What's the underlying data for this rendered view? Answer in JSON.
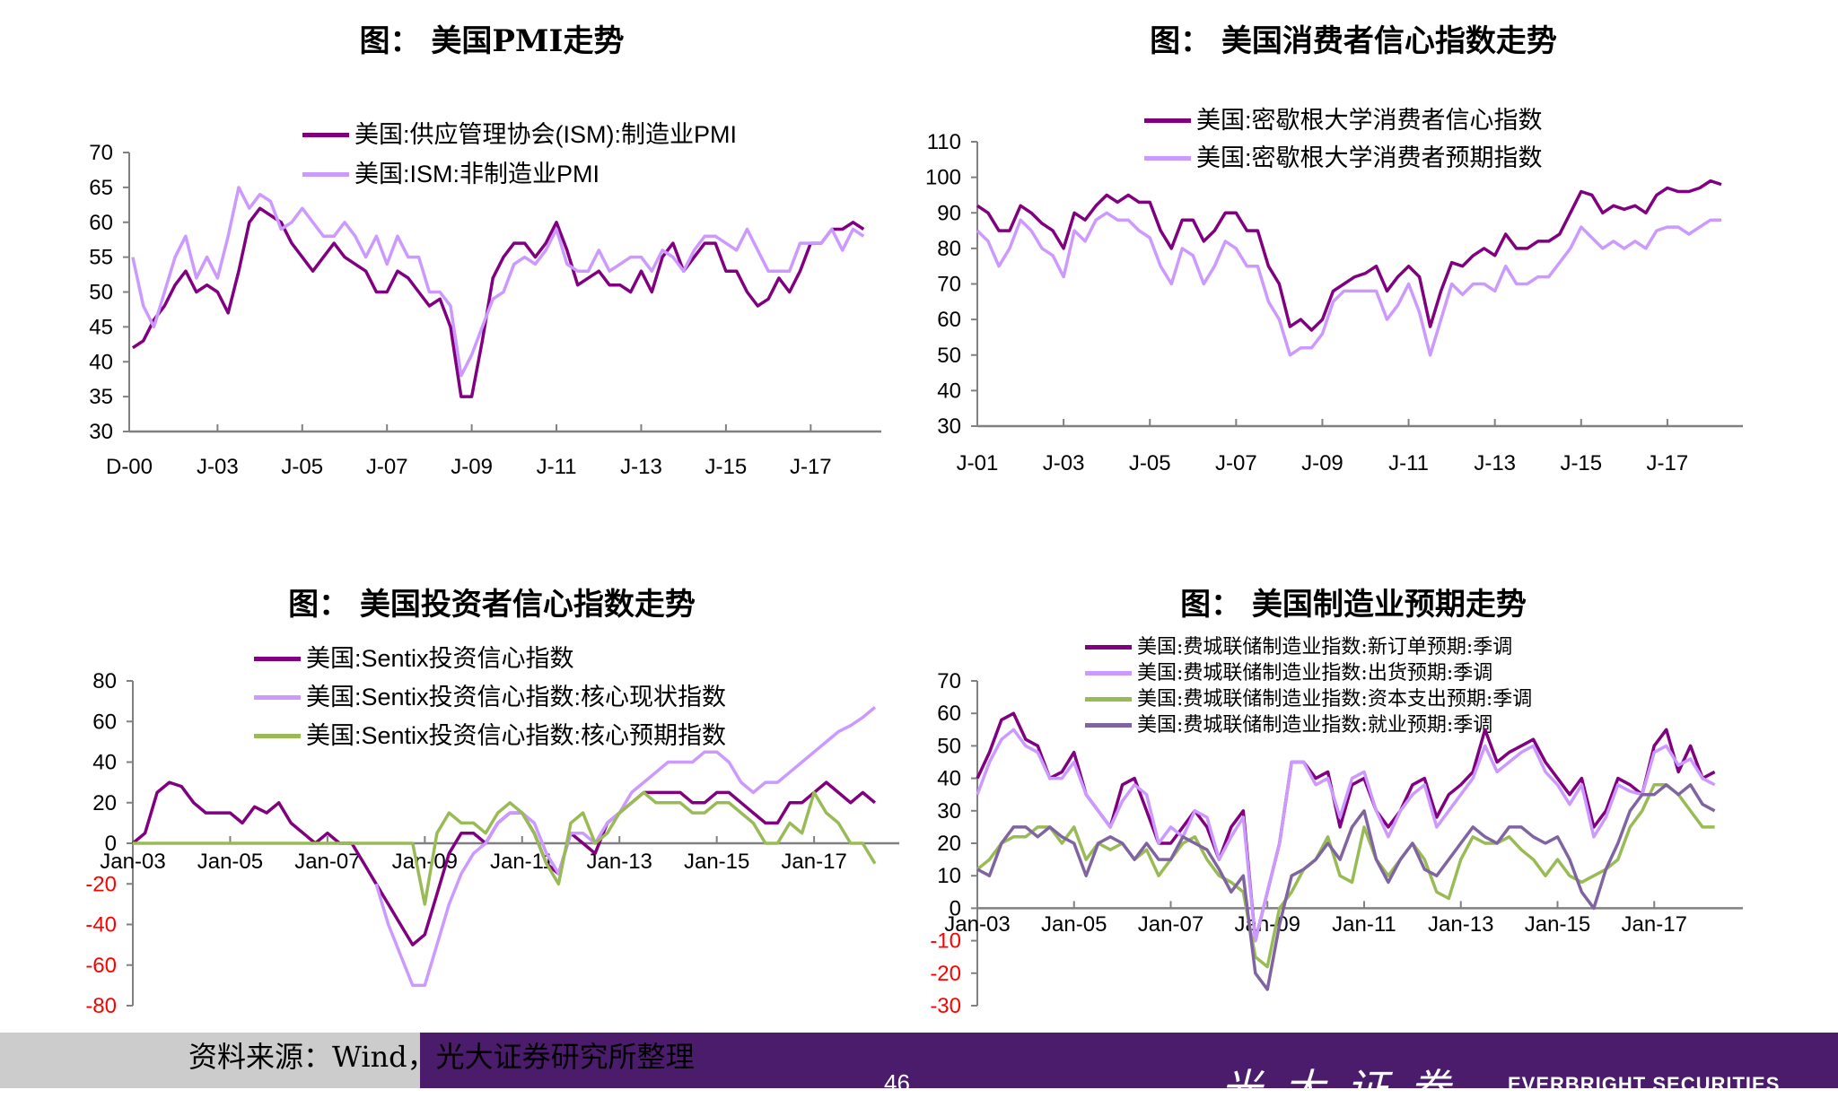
{
  "chart_data": [
    {
      "type": "line",
      "title": "图： 美国PMI走势",
      "frequency": "quarterly",
      "start": "2001-01",
      "xlim": [
        "2000-12",
        "2018-09"
      ],
      "ylim": [
        30,
        70
      ],
      "yticks": [
        30,
        35,
        40,
        45,
        50,
        55,
        60,
        65,
        70
      ],
      "xticks": [
        {
          "label": "D-00",
          "date": "2000-12"
        },
        {
          "label": "J-03",
          "date": "2003-01"
        },
        {
          "label": "J-05",
          "date": "2005-01"
        },
        {
          "label": "J-07",
          "date": "2007-01"
        },
        {
          "label": "J-09",
          "date": "2009-01"
        },
        {
          "label": "J-11",
          "date": "2011-01"
        },
        {
          "label": "J-13",
          "date": "2013-01"
        },
        {
          "label": "J-15",
          "date": "2015-01"
        },
        {
          "label": "J-17",
          "date": "2017-01"
        }
      ],
      "legend_position": "top",
      "series": [
        {
          "name": "美国:供应管理协会(ISM):制造业PMI",
          "color": "#800080",
          "values": [
            42,
            43,
            46,
            48,
            51,
            53,
            50,
            51,
            50,
            47,
            53,
            60,
            62,
            61,
            60,
            57,
            55,
            53,
            55,
            57,
            55,
            54,
            53,
            50,
            50,
            53,
            52,
            50,
            48,
            49,
            45,
            35,
            35,
            43,
            52,
            55,
            57,
            57,
            55,
            57,
            60,
            56,
            51,
            52,
            53,
            51,
            51,
            50,
            53,
            50,
            55,
            57,
            53,
            55,
            57,
            57,
            53,
            53,
            50,
            48,
            49,
            52,
            50,
            53,
            57,
            57,
            59,
            59,
            60,
            59
          ]
        },
        {
          "name": "美国:ISM:非制造业PMI",
          "color": "#cc99ff",
          "values": [
            55,
            48,
            45,
            50,
            55,
            58,
            52,
            55,
            52,
            58,
            65,
            62,
            64,
            63,
            59,
            60,
            62,
            60,
            58,
            58,
            60,
            58,
            55,
            58,
            54,
            58,
            55,
            55,
            50,
            50,
            48,
            38,
            41,
            45,
            49,
            50,
            54,
            55,
            54,
            56,
            59,
            54,
            53,
            53,
            56,
            53,
            54,
            55,
            55,
            53,
            56,
            55,
            53,
            56,
            58,
            58,
            57,
            56,
            59,
            56,
            53,
            53,
            53,
            57,
            57,
            57,
            59,
            56,
            59,
            58
          ]
        }
      ]
    },
    {
      "type": "line",
      "title": "图： 美国消费者信心指数走势",
      "frequency": "quarterly",
      "start": "2001-01",
      "xlim": [
        "2001-01",
        "2018-10"
      ],
      "ylim": [
        30,
        110
      ],
      "yticks": [
        30,
        40,
        50,
        60,
        70,
        80,
        90,
        100,
        110
      ],
      "xticks": [
        {
          "label": "J-01",
          "date": "2001-01"
        },
        {
          "label": "J-03",
          "date": "2003-01"
        },
        {
          "label": "J-05",
          "date": "2005-01"
        },
        {
          "label": "J-07",
          "date": "2007-01"
        },
        {
          "label": "J-09",
          "date": "2009-01"
        },
        {
          "label": "J-11",
          "date": "2011-01"
        },
        {
          "label": "J-13",
          "date": "2013-01"
        },
        {
          "label": "J-15",
          "date": "2015-01"
        },
        {
          "label": "J-17",
          "date": "2017-01"
        }
      ],
      "legend_position": "top",
      "series": [
        {
          "name": "美国:密歇根大学消费者信心指数",
          "color": "#800080",
          "values": [
            92,
            90,
            85,
            85,
            92,
            90,
            87,
            85,
            80,
            90,
            88,
            92,
            95,
            93,
            95,
            93,
            93,
            85,
            80,
            88,
            88,
            82,
            85,
            90,
            90,
            85,
            85,
            75,
            70,
            58,
            60,
            57,
            60,
            68,
            70,
            72,
            73,
            75,
            68,
            72,
            75,
            72,
            58,
            68,
            76,
            75,
            78,
            80,
            78,
            84,
            80,
            80,
            82,
            82,
            84,
            90,
            96,
            95,
            90,
            92,
            91,
            92,
            90,
            95,
            97,
            96,
            96,
            97,
            99,
            98
          ]
        },
        {
          "name": "美国:密歇根大学消费者预期指数",
          "color": "#cc99ff",
          "values": [
            85,
            82,
            75,
            80,
            88,
            85,
            80,
            78,
            72,
            85,
            82,
            88,
            90,
            88,
            88,
            85,
            83,
            75,
            70,
            80,
            78,
            70,
            75,
            82,
            80,
            75,
            75,
            65,
            60,
            50,
            52,
            52,
            56,
            65,
            68,
            68,
            68,
            68,
            60,
            64,
            70,
            62,
            50,
            60,
            70,
            67,
            70,
            70,
            68,
            75,
            70,
            70,
            72,
            72,
            76,
            80,
            86,
            83,
            80,
            82,
            80,
            82,
            80,
            85,
            86,
            86,
            84,
            86,
            88,
            88
          ]
        }
      ]
    },
    {
      "type": "line",
      "title": "图： 美国投资者信心指数走势",
      "frequency": "quarterly",
      "start": "2003-01",
      "xlim": [
        "2003-01",
        "2018-10"
      ],
      "ylim": [
        -80,
        80
      ],
      "yticks": [
        -80,
        -60,
        -40,
        -20,
        0,
        20,
        40,
        60,
        80
      ],
      "xticks": [
        {
          "label": "Jan-03",
          "date": "2003-01"
        },
        {
          "label": "Jan-05",
          "date": "2005-01"
        },
        {
          "label": "Jan-07",
          "date": "2007-01"
        },
        {
          "label": "Jan-09",
          "date": "2009-01"
        },
        {
          "label": "Jan-11",
          "date": "2011-01"
        },
        {
          "label": "Jan-13",
          "date": "2013-01"
        },
        {
          "label": "Jan-15",
          "date": "2015-01"
        },
        {
          "label": "Jan-17",
          "date": "2017-01"
        }
      ],
      "legend_position": "top-left",
      "series": [
        {
          "name": "美国:Sentix投资信心指数",
          "color": "#800080",
          "values": [
            0,
            5,
            25,
            30,
            28,
            20,
            15,
            15,
            15,
            10,
            18,
            15,
            20,
            10,
            5,
            0,
            5,
            0,
            0,
            -10,
            -20,
            -30,
            -40,
            -50,
            -45,
            -25,
            -5,
            5,
            5,
            0,
            10,
            15,
            15,
            5,
            -10,
            -15,
            5,
            0,
            -5,
            10,
            15,
            20,
            25,
            25,
            25,
            25,
            20,
            20,
            25,
            25,
            20,
            15,
            10,
            10,
            20,
            20,
            25,
            30,
            25,
            20,
            25,
            20
          ]
        },
        {
          "name": "美国:Sentix投资信心指数:核心现状指数",
          "color": "#cc99ff",
          "values": [
            null,
            null,
            null,
            null,
            null,
            null,
            null,
            null,
            null,
            null,
            null,
            null,
            null,
            null,
            null,
            null,
            null,
            null,
            null,
            null,
            -20,
            -40,
            -55,
            -70,
            -70,
            -50,
            -30,
            -15,
            -5,
            0,
            10,
            15,
            15,
            10,
            -5,
            -15,
            5,
            5,
            0,
            10,
            15,
            25,
            30,
            35,
            40,
            40,
            40,
            45,
            45,
            40,
            30,
            25,
            30,
            30,
            35,
            40,
            45,
            50,
            55,
            58,
            62,
            67
          ]
        },
        {
          "name": "美国:Sentix投资信心指数:核心预期指数",
          "color": "#99bb55",
          "values": [
            0,
            0,
            0,
            0,
            0,
            0,
            0,
            0,
            0,
            0,
            0,
            0,
            0,
            0,
            0,
            0,
            0,
            0,
            0,
            0,
            0,
            0,
            0,
            0,
            -30,
            5,
            15,
            10,
            10,
            5,
            15,
            20,
            15,
            5,
            -10,
            -20,
            10,
            15,
            0,
            5,
            15,
            20,
            25,
            20,
            20,
            20,
            15,
            15,
            20,
            20,
            15,
            10,
            0,
            0,
            10,
            5,
            25,
            15,
            10,
            0,
            0,
            -10
          ]
        }
      ]
    },
    {
      "type": "line",
      "title": "图： 美国制造业预期走势",
      "frequency": "quarterly",
      "start": "2003-01",
      "xlim": [
        "2003-01",
        "2018-11"
      ],
      "ylim": [
        -30,
        70
      ],
      "yticks": [
        -30,
        -20,
        -10,
        0,
        10,
        20,
        30,
        40,
        50,
        60,
        70
      ],
      "xticks": [
        {
          "label": "Jan-03",
          "date": "2003-01"
        },
        {
          "label": "Jan-05",
          "date": "2005-01"
        },
        {
          "label": "Jan-07",
          "date": "2007-01"
        },
        {
          "label": "Jan-09",
          "date": "2009-01"
        },
        {
          "label": "Jan-11",
          "date": "2011-01"
        },
        {
          "label": "Jan-13",
          "date": "2013-01"
        },
        {
          "label": "Jan-15",
          "date": "2015-01"
        },
        {
          "label": "Jan-17",
          "date": "2017-01"
        }
      ],
      "legend_position": "top",
      "series": [
        {
          "name": "美国:费城联储制造业指数:新订单预期:季调",
          "color": "#800080",
          "values": [
            40,
            48,
            58,
            60,
            52,
            50,
            40,
            42,
            48,
            35,
            30,
            25,
            38,
            40,
            30,
            20,
            20,
            25,
            30,
            25,
            15,
            25,
            30,
            -10,
            5,
            20,
            45,
            45,
            40,
            42,
            25,
            38,
            40,
            30,
            25,
            30,
            38,
            40,
            28,
            35,
            38,
            42,
            55,
            45,
            48,
            50,
            52,
            45,
            40,
            35,
            40,
            25,
            30,
            40,
            38,
            35,
            50,
            55,
            42,
            50,
            40,
            42
          ]
        },
        {
          "name": "美国:费城联储制造业指数:出货预期:季调",
          "color": "#cc99ff",
          "values": [
            35,
            45,
            52,
            55,
            50,
            48,
            40,
            40,
            45,
            35,
            30,
            25,
            33,
            38,
            35,
            20,
            25,
            22,
            30,
            28,
            15,
            22,
            28,
            -10,
            5,
            20,
            45,
            45,
            38,
            40,
            28,
            40,
            42,
            30,
            22,
            30,
            35,
            38,
            25,
            30,
            35,
            40,
            50,
            42,
            45,
            48,
            50,
            42,
            38,
            32,
            38,
            22,
            28,
            38,
            36,
            35,
            48,
            50,
            44,
            46,
            40,
            38
          ]
        },
        {
          "name": "美国:费城联储制造业指数:资本支出预期:季调",
          "color": "#99bb55",
          "values": [
            12,
            15,
            20,
            22,
            22,
            25,
            25,
            20,
            25,
            15,
            20,
            18,
            20,
            15,
            18,
            10,
            15,
            20,
            22,
            15,
            10,
            8,
            5,
            -15,
            -18,
            0,
            5,
            12,
            15,
            22,
            10,
            8,
            25,
            15,
            10,
            15,
            20,
            15,
            5,
            3,
            15,
            22,
            20,
            20,
            22,
            18,
            15,
            10,
            15,
            10,
            8,
            10,
            12,
            15,
            25,
            30,
            38,
            38,
            35,
            30,
            25,
            25
          ]
        },
        {
          "name": "美国:费城联储制造业指数:就业预期:季调",
          "color": "#8064a2",
          "values": [
            12,
            10,
            20,
            25,
            25,
            22,
            25,
            22,
            20,
            10,
            20,
            22,
            20,
            15,
            20,
            15,
            15,
            22,
            20,
            18,
            12,
            5,
            10,
            -20,
            -25,
            -5,
            10,
            12,
            15,
            20,
            15,
            25,
            30,
            15,
            8,
            15,
            20,
            12,
            10,
            15,
            20,
            25,
            22,
            20,
            25,
            25,
            22,
            20,
            22,
            15,
            5,
            0,
            12,
            20,
            30,
            35,
            35,
            38,
            35,
            38,
            32,
            30
          ]
        }
      ]
    }
  ],
  "footer": {
    "source": "资料来源：Wind，光大证券研究所整理",
    "page_number": "46",
    "logo_cn": "光大证券",
    "logo_en": "EVERBRIGHT SECURITIES"
  }
}
